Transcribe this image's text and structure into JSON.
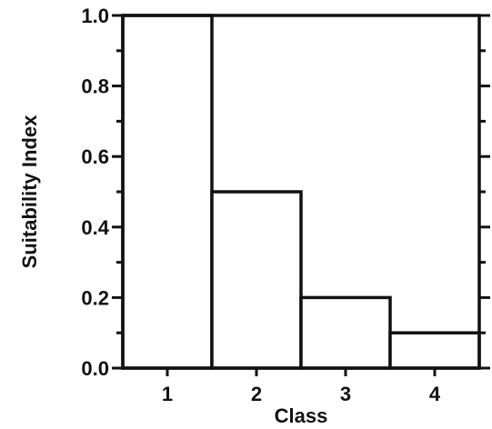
{
  "chart_data": {
    "type": "bar",
    "categories": [
      "1",
      "2",
      "3",
      "4"
    ],
    "values": [
      1.0,
      0.5,
      0.2,
      0.1
    ],
    "xlabel": "Class",
    "ylabel": "Suitability Index",
    "ylim": [
      0.0,
      1.0
    ],
    "yticks": [
      "0.0",
      "0.2",
      "0.4",
      "0.6",
      "0.8",
      "1.0"
    ],
    "grid": false
  }
}
